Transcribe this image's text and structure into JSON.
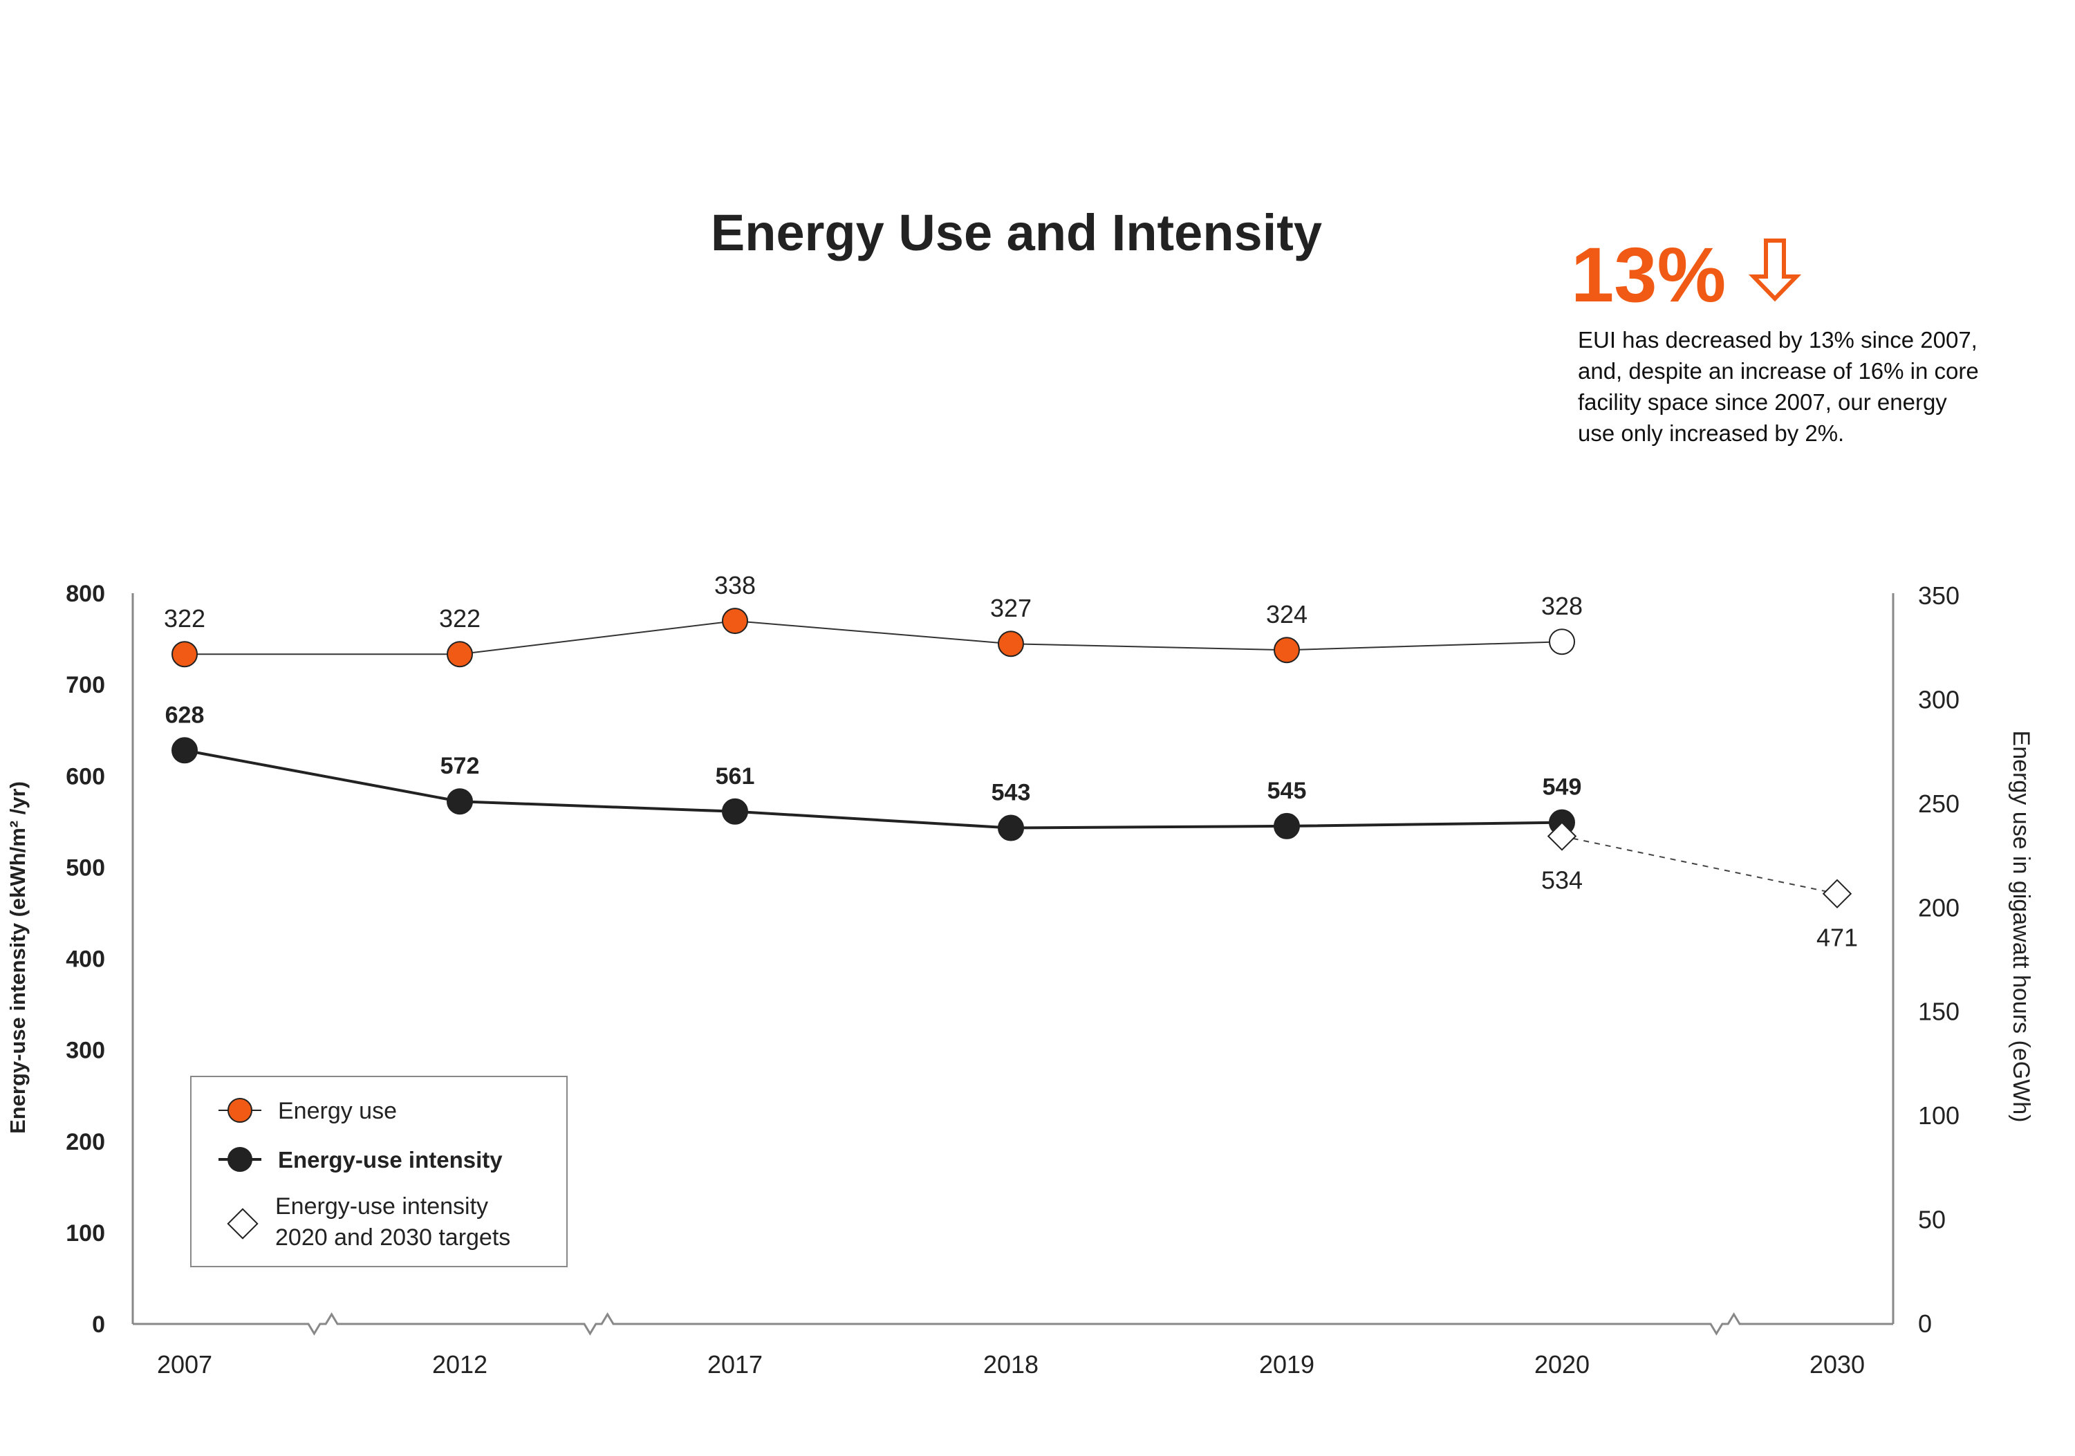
{
  "chart_data": {
    "type": "line",
    "title": "Energy Use and Intensity",
    "categories": [
      "2007",
      "2012",
      "2017",
      "2018",
      "2019",
      "2020",
      "2030"
    ],
    "series": [
      {
        "name": "Energy use",
        "axis": "right",
        "values": [
          322,
          322,
          338,
          327,
          324,
          328,
          null
        ],
        "labels": [
          "322",
          "322",
          "338",
          "327",
          "324",
          "328",
          ""
        ],
        "color": "#f05a14"
      },
      {
        "name": "Energy-use intensity",
        "axis": "left",
        "values": [
          628,
          572,
          561,
          543,
          545,
          549,
          null
        ],
        "labels": [
          "628",
          "572",
          "561",
          "543",
          "545",
          "549",
          ""
        ],
        "color": "#222222"
      },
      {
        "name": "Energy-use intensity 2020 and 2030 targets",
        "axis": "left",
        "values": [
          null,
          null,
          null,
          null,
          null,
          534,
          471
        ],
        "labels": [
          "",
          "",
          "",
          "",
          "",
          "534",
          "471"
        ],
        "color": "#222222"
      }
    ],
    "y_left": {
      "label": "Energy-use intensity (ekWh/m² /yr)",
      "range": [
        0,
        800
      ],
      "ticks": [
        "0",
        "100",
        "200",
        "300",
        "400",
        "500",
        "600",
        "700",
        "800"
      ]
    },
    "y_right": {
      "label": "Energy use in gigawatt hours (eGWh)",
      "range": [
        0,
        350
      ],
      "ticks": [
        "0",
        "50",
        "100",
        "150",
        "200",
        "250",
        "300",
        "350"
      ]
    },
    "axis_breaks": "between 2007–2012, 2012–2017, 2020–2030",
    "grid": false,
    "legend": {
      "placement": "bottom-left",
      "entries": [
        {
          "text": "Energy use",
          "marker": "orange-circle"
        },
        {
          "text": "Energy-use intensity",
          "marker": "black-circle"
        },
        {
          "text_lines": [
            "Energy-use intensity",
            "2020 and 2030 targets"
          ],
          "marker": "diamond"
        }
      ]
    }
  },
  "callout": {
    "big": "13%",
    "icon": "down-arrow-icon",
    "color": "#f05a14",
    "lines": [
      "EUI has decreased by 13% since 2007,",
      "and, despite an increase of 16% in core",
      "facility space since 2007, our energy",
      "use only increased by 2%."
    ]
  }
}
